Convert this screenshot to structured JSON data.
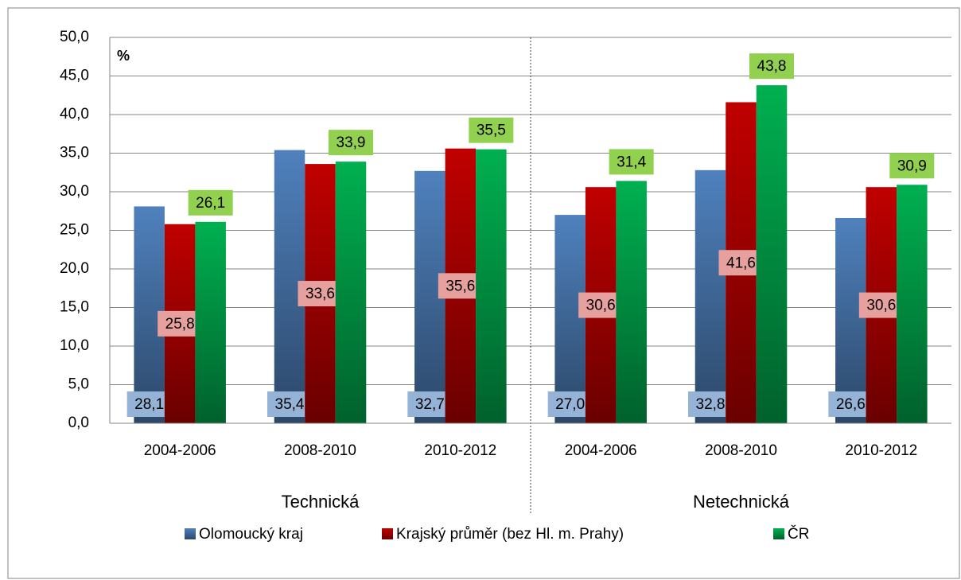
{
  "chart_data": {
    "type": "bar",
    "y_label": "%",
    "groups": [
      "Technická",
      "Netechnická"
    ],
    "categories": [
      "2004-2006",
      "2008-2010",
      "2010-2012",
      "2004-2006",
      "2008-2010",
      "2010-2012"
    ],
    "series": [
      {
        "name": "Olomoucký kraj",
        "color": "#4f81bd",
        "values": [
          28.1,
          35.4,
          32.7,
          27.0,
          32.8,
          26.6
        ],
        "value_labels": [
          "28,1",
          "35,4",
          "32,7",
          "27,0",
          "32,8",
          "26,6"
        ]
      },
      {
        "name": "Krajský průměr (bez Hl. m. Prahy)",
        "color": "#c00000",
        "values": [
          25.8,
          33.6,
          35.6,
          30.6,
          41.6,
          30.6
        ],
        "value_labels": [
          "25,8",
          "33,6",
          "35,6",
          "30,6",
          "41,6",
          "30,6"
        ]
      },
      {
        "name": "ČR",
        "color": "#00b050",
        "values": [
          26.1,
          33.9,
          35.5,
          31.4,
          43.8,
          30.9
        ],
        "value_labels": [
          "26,1",
          "33,9",
          "35,5",
          "31,4",
          "43,8",
          "30,9"
        ]
      }
    ],
    "ylim": [
      0,
      50
    ],
    "yticks": [
      {
        "value": 0,
        "label": "0,0"
      },
      {
        "value": 5,
        "label": "5,0"
      },
      {
        "value": 10,
        "label": "10,0"
      },
      {
        "value": 15,
        "label": "15,0"
      },
      {
        "value": 20,
        "label": "20,0"
      },
      {
        "value": 25,
        "label": "25,0"
      },
      {
        "value": 30,
        "label": "30,0"
      },
      {
        "value": 35,
        "label": "35,0"
      },
      {
        "value": 40,
        "label": "40,0"
      },
      {
        "value": 45,
        "label": "45,0"
      },
      {
        "value": 50,
        "label": "50,0"
      }
    ],
    "grid": true,
    "legend": "bottom"
  }
}
